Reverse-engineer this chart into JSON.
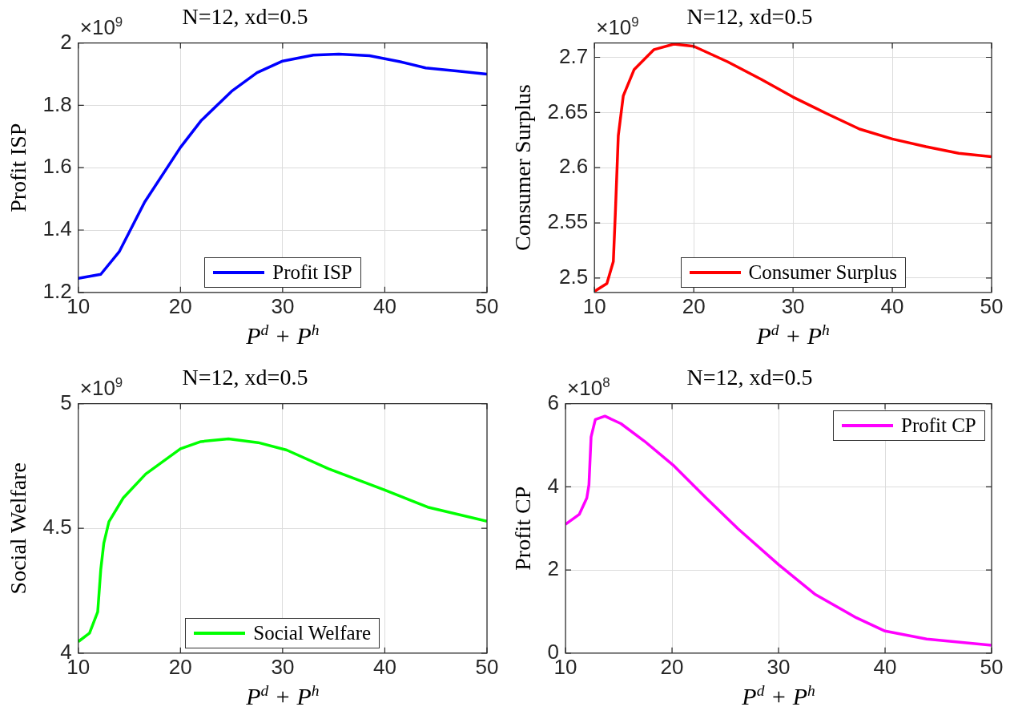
{
  "chart_data": [
    {
      "type": "line",
      "title": "N=12, xd=0.5",
      "xlabel": "P$^{d}$ + P$^{h}$",
      "ylabel": "Profit ISP",
      "annotations": [
        "×10$^{9}$"
      ],
      "xlim": [
        10,
        50
      ],
      "xticks": [
        10,
        20,
        30,
        40,
        50
      ],
      "ylim": [
        1.2,
        2
      ],
      "yticks": [
        1.2,
        1.4,
        1.6,
        1.8,
        2
      ],
      "grid": true,
      "legend": "bottom",
      "line_style": "solid",
      "marker": "none",
      "series": [
        {
          "name": "Profit ISP",
          "color": "#0000ff",
          "x": [
            10,
            12.2,
            14,
            16.5,
            20,
            22,
            25,
            27.5,
            30,
            33,
            35.5,
            38.5,
            41.5,
            44,
            47,
            50
          ],
          "values": [
            1.245,
            1.258,
            1.33,
            1.49,
            1.665,
            1.75,
            1.845,
            1.905,
            1.942,
            1.961,
            1.964,
            1.959,
            1.94,
            1.92,
            1.91,
            1.9
          ]
        }
      ]
    },
    {
      "type": "line",
      "title": "N=12, xd=0.5",
      "xlabel": "P$^{d}$ + P$^{h}$",
      "ylabel": "Consumer Surplus",
      "annotations": [
        "×10$^{9}$"
      ],
      "xlim": [
        10,
        50
      ],
      "xticks": [
        10,
        20,
        30,
        40,
        50
      ],
      "ylim": [
        2.487,
        2.713
      ],
      "yticks": [
        2.5,
        2.55,
        2.6,
        2.65,
        2.7
      ],
      "grid": true,
      "legend": "bottom",
      "line_style": "solid",
      "marker": "none",
      "series": [
        {
          "name": "Consumer Surplus",
          "color": "#ff0000",
          "x": [
            10,
            11.25,
            11.9,
            12.1,
            12.4,
            12.9,
            14,
            16,
            18,
            20,
            23.4,
            26.8,
            30,
            33.4,
            36.7,
            40,
            43.4,
            46.7,
            50
          ],
          "values": [
            2.488,
            2.495,
            2.515,
            2.558,
            2.629,
            2.665,
            2.689,
            2.707,
            2.712,
            2.71,
            2.696,
            2.68,
            2.664,
            2.649,
            2.635,
            2.626,
            2.619,
            2.613,
            2.61
          ]
        }
      ]
    },
    {
      "type": "line",
      "title": "N=12, xd=0.5",
      "xlabel": "P$^{d}$ + P$^{h}$",
      "ylabel": "Social Welfare",
      "annotations": [
        "×10$^{9}$"
      ],
      "xlim": [
        10,
        50
      ],
      "xticks": [
        10,
        20,
        30,
        40,
        50
      ],
      "ylim": [
        4,
        5
      ],
      "yticks": [
        4,
        4.5,
        5
      ],
      "grid": true,
      "legend": "bottom",
      "line_style": "solid",
      "marker": "none",
      "series": [
        {
          "name": "Social Welfare",
          "color": "#00ff00",
          "x": [
            10,
            11.1,
            11.9,
            12.2,
            12.5,
            13,
            14.4,
            16.6,
            20,
            22,
            24.7,
            27.6,
            30.4,
            34.5,
            40,
            44.2,
            50
          ],
          "values": [
            4.046,
            4.08,
            4.165,
            4.335,
            4.441,
            4.527,
            4.622,
            4.718,
            4.819,
            4.848,
            4.859,
            4.844,
            4.814,
            4.739,
            4.654,
            4.585,
            4.529
          ]
        }
      ]
    },
    {
      "type": "line",
      "title": "N=12, xd=0.5",
      "xlabel": "P$^{d}$ + P$^{h}$",
      "ylabel": "Profit CP",
      "annotations": [
        "×10$^{8}$"
      ],
      "xlim": [
        10,
        50
      ],
      "xticks": [
        10,
        20,
        30,
        40,
        50
      ],
      "ylim": [
        0,
        6
      ],
      "yticks": [
        0,
        2,
        4,
        6
      ],
      "grid": true,
      "legend": "top right",
      "line_style": "solid",
      "marker": "none",
      "series": [
        {
          "name": "Profit CP",
          "color": "#ff00ff",
          "x": [
            10,
            11.3,
            12,
            12.2,
            12.4,
            12.8,
            13.7,
            15.2,
            17.4,
            20.2,
            23.2,
            26.2,
            30,
            33.4,
            37.3,
            40,
            43.9,
            50
          ],
          "values": [
            3.1,
            3.34,
            3.73,
            4.05,
            5.2,
            5.62,
            5.7,
            5.52,
            5.1,
            4.5,
            3.73,
            2.99,
            2.13,
            1.42,
            0.85,
            0.53,
            0.34,
            0.19
          ]
        }
      ]
    }
  ]
}
